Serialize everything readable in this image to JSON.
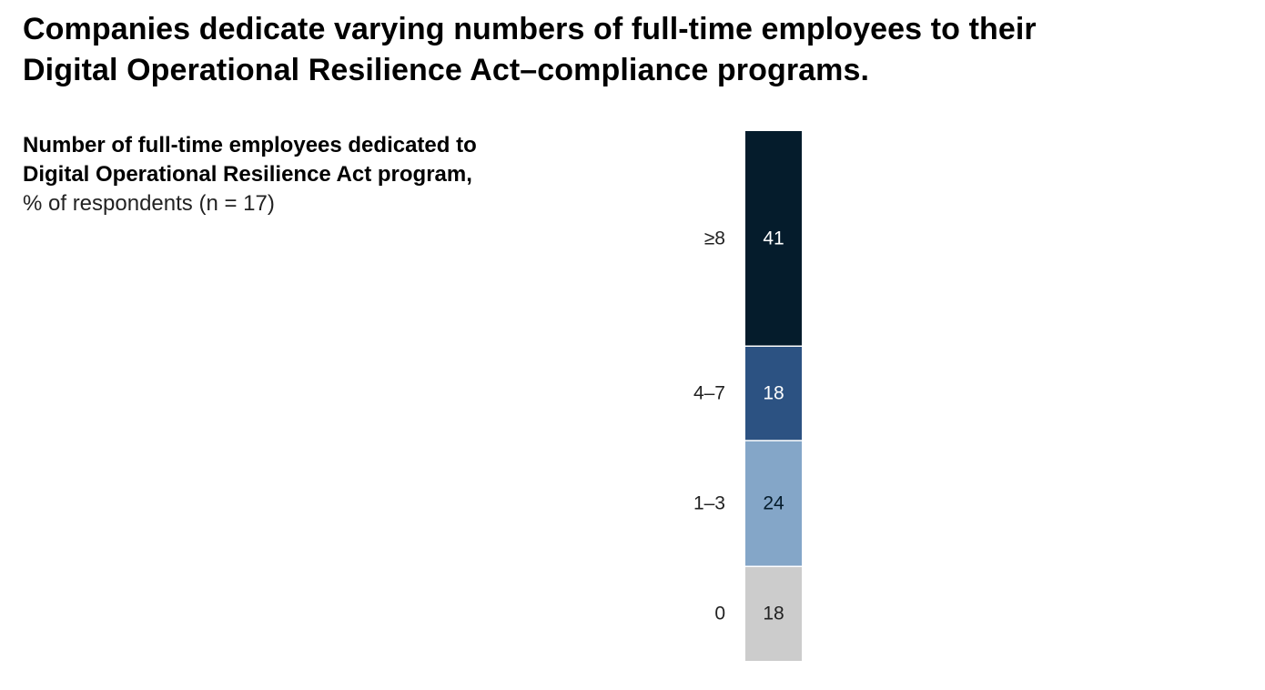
{
  "title": {
    "line1": "Companies dedicate varying numbers of full-time employees to their",
    "line2": "Digital Operational Resilience Act–compliance programs."
  },
  "subtitle": {
    "line1": "Number of full-time employees dedicated to",
    "line2": "Digital Operational Resilience Act program,",
    "unit": "% of respondents (n = 17)"
  },
  "chart_data": {
    "type": "bar",
    "stacked": true,
    "orientation": "vertical",
    "title": "Number of full-time employees dedicated to Digital Operational Resilience Act program",
    "unit": "% of respondents (n = 17)",
    "categories_top_to_bottom": [
      "≥8",
      "4–7",
      "1–3",
      "0"
    ],
    "values_top_to_bottom": [
      41,
      18,
      24,
      18
    ],
    "colors": [
      "#051c2c",
      "#2c5282",
      "#84a6c8",
      "#cccccc"
    ],
    "label_colors": [
      "#ffffff",
      "#ffffff",
      "#051c2c",
      "#222222"
    ],
    "legend": "none"
  }
}
